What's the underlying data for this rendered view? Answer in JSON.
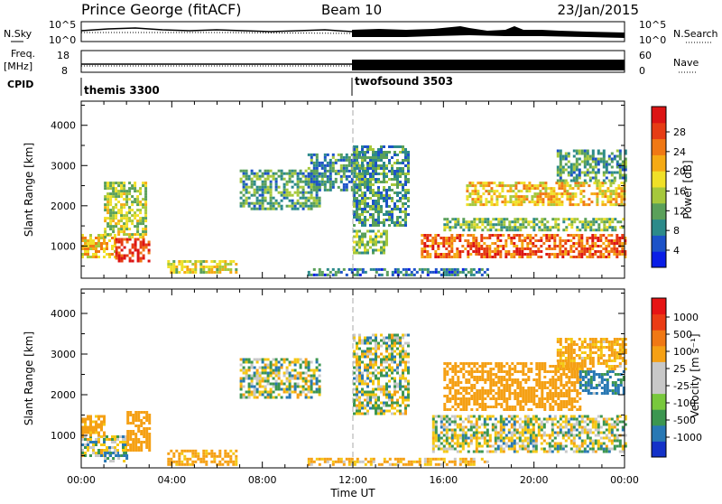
{
  "header": {
    "station": "Prince George (fitACF)",
    "beam": "Beam 10",
    "date": "23/Jan/2015"
  },
  "top_panels": {
    "nsky_label": "N.Sky",
    "nsearch_label": "N.Search",
    "noise_ticks": [
      "10^5",
      "10^0"
    ],
    "freq_label_line1": "Freq.",
    "freq_label_line2": "[MHz]",
    "freq_ticks": [
      "18",
      "8"
    ],
    "nave_label": "Nave",
    "nave_ticks": [
      "60",
      "0"
    ],
    "cpid_label": "CPID",
    "cpid_segments": [
      {
        "name": "themis 3300",
        "start_hour": 0
      },
      {
        "name": "twofsound 3503",
        "start_hour": 12
      }
    ]
  },
  "colorbars": {
    "power": {
      "label": "Power [dB]",
      "ticks": [
        "28",
        "24",
        "20",
        "16",
        "12",
        "8",
        "4"
      ],
      "colors": [
        "#0a1ee6",
        "#1c52c8",
        "#2c8a8a",
        "#5aa05a",
        "#a6c83c",
        "#f0e028",
        "#f5aa14",
        "#f07814",
        "#e63c14",
        "#dc1414"
      ]
    },
    "velocity": {
      "label": "Velocity [m s⁻¹]",
      "ticks": [
        "1000",
        "500",
        "100",
        "25",
        "-25",
        "-100",
        "-500",
        "-1000"
      ],
      "colors": [
        "#1432c8",
        "#2878b4",
        "#3c9650",
        "#78c83c",
        "#c8c8c8",
        "#c8c8c8",
        "#f5a014",
        "#f07814",
        "#eb3c14",
        "#e61414"
      ]
    }
  },
  "chart_data": [
    {
      "type": "heatmap",
      "title": "Power",
      "xlabel": "Time UT",
      "ylabel": "Slant Range [km]",
      "x_ticks": [
        "00:00",
        "04:00",
        "08:00",
        "12:00",
        "16:00",
        "20:00",
        "00:00"
      ],
      "y_ticks": [
        "1000",
        "2000",
        "3000",
        "4000"
      ],
      "xlim": [
        0,
        24
      ],
      "ylim": [
        200,
        4600
      ],
      "regions": [
        {
          "t0": 0.0,
          "t1": 1.5,
          "r0": 700,
          "r1": 1300,
          "level": 18
        },
        {
          "t0": 1.5,
          "t1": 3.0,
          "r0": 600,
          "r1": 1200,
          "level": 26
        },
        {
          "t0": 1.0,
          "t1": 2.8,
          "r0": 1200,
          "r1": 2600,
          "level": 14
        },
        {
          "t0": 3.8,
          "t1": 6.8,
          "r0": 350,
          "r1": 650,
          "level": 16
        },
        {
          "t0": 7.0,
          "t1": 10.5,
          "r0": 1900,
          "r1": 2900,
          "level": 10
        },
        {
          "t0": 10.0,
          "t1": 12.5,
          "r0": 2400,
          "r1": 3300,
          "level": 8
        },
        {
          "t0": 12.0,
          "t1": 14.5,
          "r0": 1500,
          "r1": 3500,
          "level": 9
        },
        {
          "t0": 12.0,
          "t1": 13.5,
          "r0": 800,
          "r1": 1400,
          "level": 12
        },
        {
          "t0": 15.0,
          "t1": 24.0,
          "r0": 700,
          "r1": 1300,
          "level": 24
        },
        {
          "t0": 16.0,
          "t1": 24.0,
          "r0": 1400,
          "r1": 1700,
          "level": 12
        },
        {
          "t0": 17.0,
          "t1": 24.0,
          "r0": 2000,
          "r1": 2600,
          "level": 18
        },
        {
          "t0": 21.0,
          "t1": 24.0,
          "r0": 2600,
          "r1": 3400,
          "level": 10
        },
        {
          "t0": 10.0,
          "t1": 18.0,
          "r0": 250,
          "r1": 450,
          "level": 7
        }
      ]
    },
    {
      "type": "heatmap",
      "title": "Velocity",
      "xlabel": "Time UT",
      "ylabel": "Slant Range [km]",
      "x_ticks": [
        "00:00",
        "04:00",
        "08:00",
        "12:00",
        "16:00",
        "20:00",
        "00:00"
      ],
      "y_ticks": [
        "1000",
        "2000",
        "3000",
        "4000"
      ],
      "xlim": [
        0,
        24
      ],
      "ylim": [
        200,
        4600
      ],
      "regions": [
        {
          "t0": 0.0,
          "t1": 2.0,
          "r0": 500,
          "r1": 1000,
          "v": 0
        },
        {
          "t0": 0.0,
          "t1": 1.0,
          "r0": 1000,
          "r1": 1500,
          "v": -200
        },
        {
          "t0": 2.0,
          "t1": 3.0,
          "r0": 600,
          "r1": 1600,
          "v": -300
        },
        {
          "t0": 1.0,
          "t1": 2.0,
          "r0": 350,
          "r1": 600,
          "v": 80
        },
        {
          "t0": 3.8,
          "t1": 6.8,
          "r0": 300,
          "r1": 650,
          "v": -200
        },
        {
          "t0": 7.0,
          "t1": 10.5,
          "r0": 1900,
          "r1": 2900,
          "v": 0
        },
        {
          "t0": 12.0,
          "t1": 14.5,
          "r0": 1500,
          "r1": 3500,
          "v": 0
        },
        {
          "t0": 15.5,
          "t1": 24.0,
          "r0": 600,
          "r1": 1500,
          "v": 0
        },
        {
          "t0": 16.0,
          "t1": 22.0,
          "r0": 1600,
          "r1": 2800,
          "v": -300
        },
        {
          "t0": 22.0,
          "t1": 24.0,
          "r0": 2000,
          "r1": 2600,
          "v": 150
        },
        {
          "t0": 21.0,
          "t1": 24.0,
          "r0": 2600,
          "r1": 3400,
          "v": -150
        },
        {
          "t0": 10.0,
          "t1": 18.0,
          "r0": 250,
          "r1": 450,
          "v": -120
        }
      ]
    }
  ]
}
